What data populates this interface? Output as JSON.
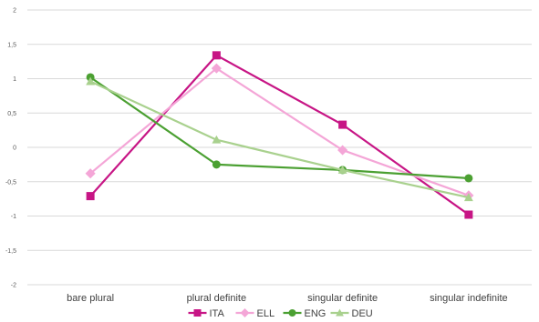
{
  "chart_data": {
    "type": "line",
    "categories": [
      "bare plural",
      "plural definite",
      "singular definite",
      "singular indefinite"
    ],
    "y_ticks": [
      "2",
      "1,5",
      "1",
      "0,5",
      "0",
      "-0,5",
      "-1",
      "-1,5",
      "-2"
    ],
    "ylim": [
      -2,
      2
    ],
    "grid": true,
    "legend_position": "bottom",
    "series": [
      {
        "name": "ITA",
        "color": "#c71585",
        "marker": "square",
        "values": [
          -0.71,
          1.34,
          0.33,
          -0.98
        ]
      },
      {
        "name": "ELL",
        "color": "#f4a6d7",
        "marker": "diamond",
        "values": [
          -0.38,
          1.15,
          -0.04,
          -0.7
        ]
      },
      {
        "name": "ENG",
        "color": "#4ba032",
        "marker": "circle",
        "values": [
          1.02,
          -0.25,
          -0.33,
          -0.45
        ]
      },
      {
        "name": "DEU",
        "color": "#a9d18e",
        "marker": "triangle",
        "values": [
          0.96,
          0.11,
          -0.33,
          -0.73
        ]
      }
    ]
  }
}
